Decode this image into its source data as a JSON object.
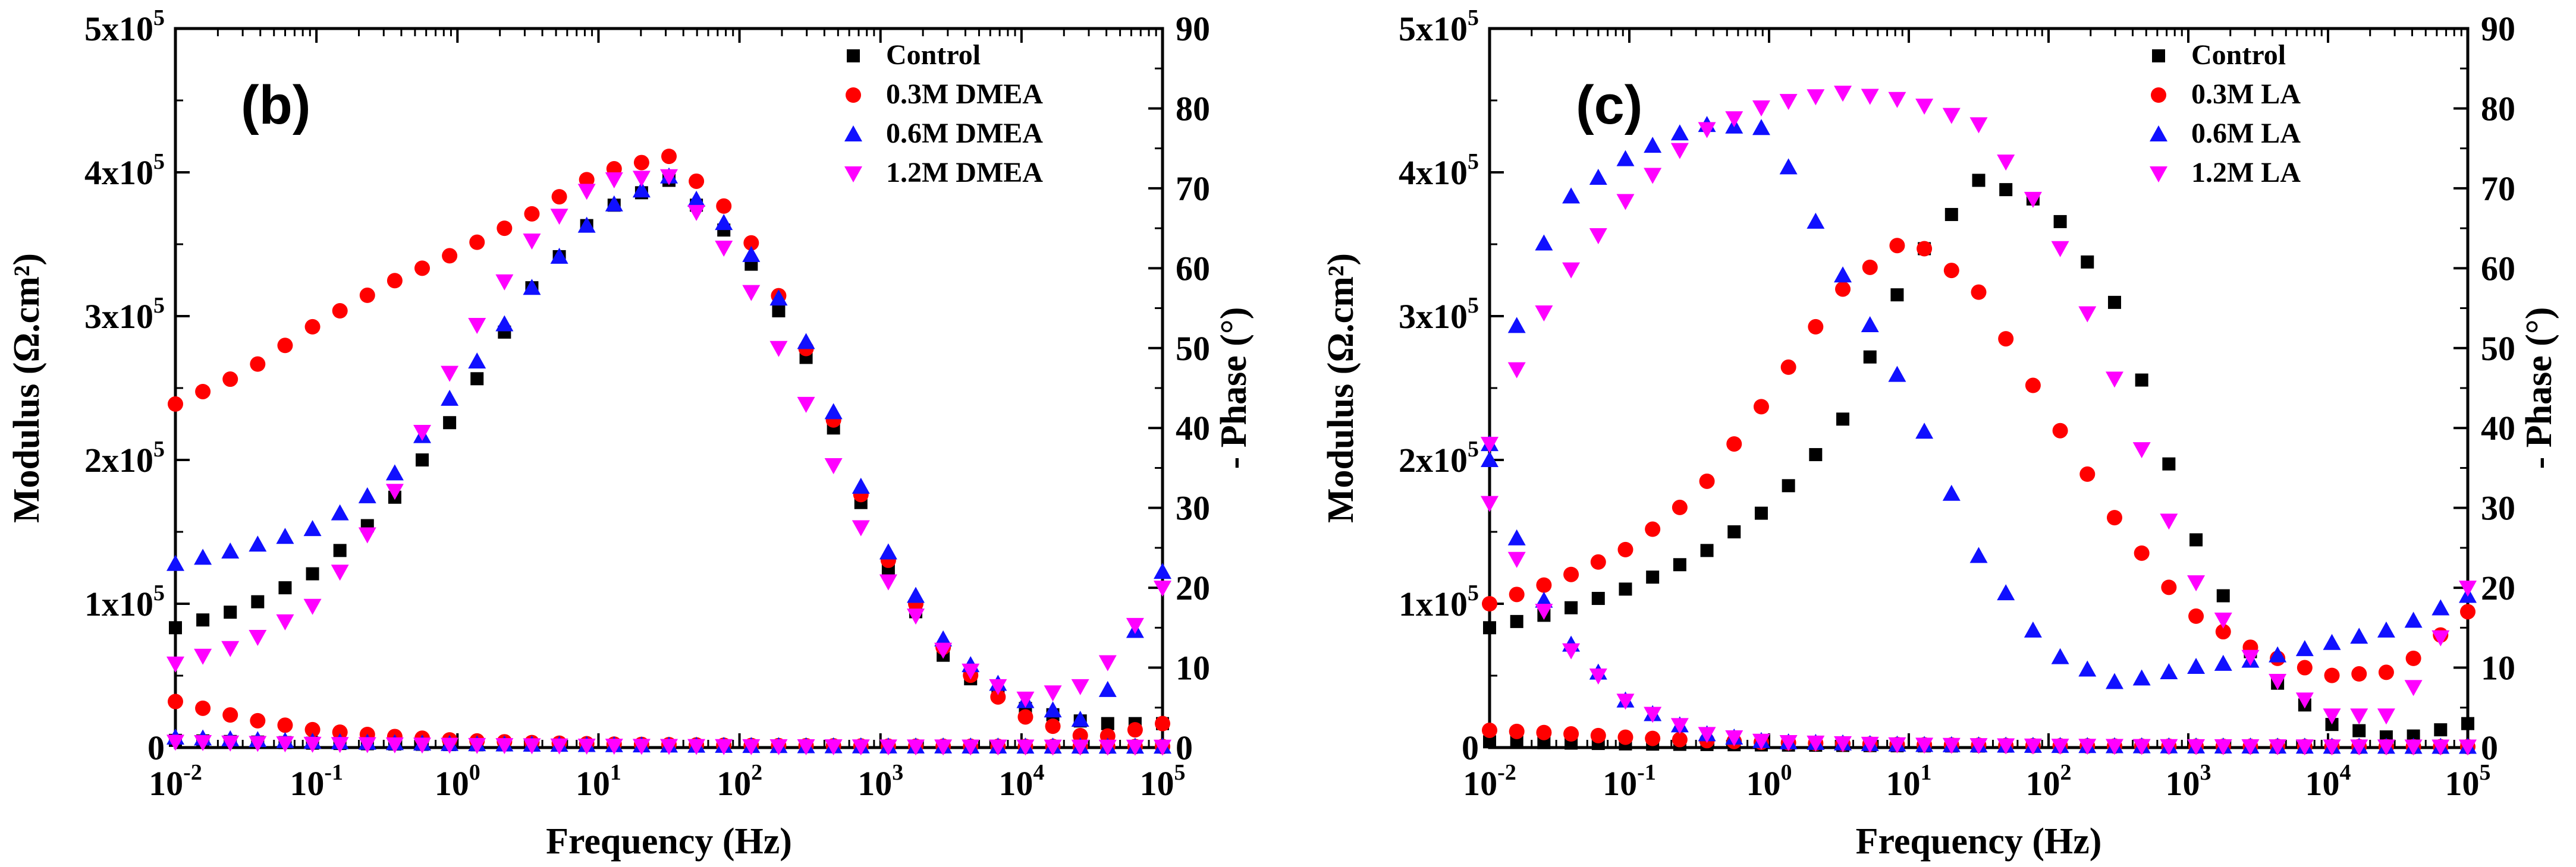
{
  "colors": {
    "Control": "#000000",
    "0.3M": "#ff0000",
    "0.6M": "#1010ff",
    "1.2M": "#ff00ff"
  },
  "chart_data": [
    {
      "type": "scatter",
      "panel_label": "(b)",
      "xlabel": "Frequency (Hz)",
      "ylabel_left": "Modulus (Ω.cm²)",
      "ylabel_right": "- Phase (°)",
      "x_scale": "log",
      "xlim_exp": [
        -2,
        5
      ],
      "x_tick_labels": [
        "10-2",
        "10-1",
        "100",
        "101",
        "102",
        "103",
        "104",
        "105"
      ],
      "ylim_left": [
        0,
        500000
      ],
      "y_left_tick_labels": [
        "0",
        "1x105",
        "2x105",
        "3x105",
        "4x105",
        "5x105"
      ],
      "ylim_right": [
        0,
        90
      ],
      "y_right_tick_labels": [
        "0",
        "10",
        "20",
        "30",
        "40",
        "50",
        "60",
        "70",
        "80",
        "90"
      ],
      "legend": [
        "Control",
        "0.3M DMEA",
        "0.6M DMEA",
        "1.2M DMEA"
      ],
      "legend_position": "top-right",
      "series": [
        {
          "name": "Control",
          "marker": "square",
          "phase_points": [
            [
              -2,
              15
            ],
            [
              -1.5,
              17.5
            ],
            [
              -1,
              22
            ],
            [
              -0.5,
              30
            ],
            [
              0,
              42
            ],
            [
              0.5,
              57
            ],
            [
              1,
              67
            ],
            [
              1.5,
              71
            ],
            [
              2,
              63
            ],
            [
              2.5,
              48
            ],
            [
              3,
              24
            ],
            [
              3.5,
              10
            ],
            [
              4,
              5
            ],
            [
              4.5,
              3
            ],
            [
              5,
              3
            ]
          ],
          "modulus_points": [
            [
              -2,
              5000
            ],
            [
              -1,
              3000
            ],
            [
              0,
              2000
            ],
            [
              1,
              1500
            ],
            [
              2,
              1000
            ],
            [
              3,
              800
            ],
            [
              4,
              700
            ],
            [
              5,
              600
            ]
          ]
        },
        {
          "name": "0.3M DMEA",
          "marker": "circle",
          "phase_points": [
            [
              -2,
              43
            ],
            [
              -1.5,
              47
            ],
            [
              -1,
              53
            ],
            [
              -0.5,
              58
            ],
            [
              0,
              62
            ],
            [
              0.5,
              66.5
            ],
            [
              1,
              72
            ],
            [
              1.5,
              74
            ],
            [
              2,
              66
            ],
            [
              2.5,
              49
            ],
            [
              3,
              25
            ],
            [
              3.5,
              11
            ],
            [
              4,
              4
            ],
            [
              4.5,
              1
            ],
            [
              5,
              3
            ]
          ],
          "modulus_points": [
            [
              -2,
              32000
            ],
            [
              -1.5,
              20000
            ],
            [
              -1,
              12000
            ],
            [
              -0.5,
              8000
            ],
            [
              0,
              5000
            ],
            [
              0.5,
              3500
            ],
            [
              1,
              2500
            ],
            [
              2,
              1500
            ],
            [
              3,
              1000
            ],
            [
              4,
              800
            ],
            [
              5,
              700
            ]
          ]
        },
        {
          "name": "0.6M DMEA",
          "marker": "triangle-up",
          "phase_points": [
            [
              -2,
              23
            ],
            [
              -1.5,
              25
            ],
            [
              -1,
              27.5
            ],
            [
              -0.5,
              33
            ],
            [
              0,
              45
            ],
            [
              0.5,
              57
            ],
            [
              1,
              67
            ],
            [
              1.5,
              71.5
            ],
            [
              2,
              64
            ],
            [
              2.5,
              50
            ],
            [
              3,
              26
            ],
            [
              3.5,
              12
            ],
            [
              4,
              6
            ],
            [
              4.5,
              3
            ],
            [
              5,
              22
            ]
          ],
          "modulus_points": [
            [
              -2,
              7000
            ],
            [
              -1,
              4000
            ],
            [
              0,
              2500
            ],
            [
              1,
              1800
            ],
            [
              2,
              1200
            ],
            [
              3,
              900
            ],
            [
              4,
              800
            ],
            [
              5,
              700
            ]
          ]
        },
        {
          "name": "1.2M DMEA",
          "marker": "triangle-down",
          "phase_points": [
            [
              -2,
              10.5
            ],
            [
              -1.5,
              13
            ],
            [
              -1,
              18
            ],
            [
              -0.5,
              30
            ],
            [
              0,
              49
            ],
            [
              0.5,
              63
            ],
            [
              1,
              71
            ],
            [
              1.5,
              71.5
            ],
            [
              2,
              60
            ],
            [
              2.5,
              42
            ],
            [
              3,
              22
            ],
            [
              3.5,
              11
            ],
            [
              4,
              6
            ],
            [
              4.5,
              8
            ],
            [
              5,
              20
            ]
          ],
          "modulus_points": [
            [
              -2,
              4000
            ],
            [
              -1,
              2500
            ],
            [
              0,
              1800
            ],
            [
              1,
              1200
            ],
            [
              2,
              900
            ],
            [
              3,
              700
            ],
            [
              4,
              600
            ],
            [
              5,
              500
            ]
          ]
        }
      ]
    },
    {
      "type": "scatter",
      "panel_label": "(c)",
      "xlabel": "Frequency (Hz)",
      "ylabel_left": "Modulus (Ω.cm²)",
      "ylabel_right": "- Phase (°)",
      "x_scale": "log",
      "xlim_exp": [
        -2,
        5
      ],
      "x_tick_labels": [
        "10-2",
        "10-1",
        "100",
        "101",
        "102",
        "103",
        "104",
        "105"
      ],
      "ylim_left": [
        0,
        500000
      ],
      "y_left_tick_labels": [
        "0",
        "1x105",
        "2x105",
        "3x105",
        "4x105",
        "5x105"
      ],
      "ylim_right": [
        0,
        90
      ],
      "y_right_tick_labels": [
        "0",
        "10",
        "20",
        "30",
        "40",
        "50",
        "60",
        "70",
        "80",
        "90"
      ],
      "legend": [
        "Control",
        "0.3M LA",
        "0.6M LA",
        "1.2M LA"
      ],
      "legend_position": "top-right",
      "series": [
        {
          "name": "Control",
          "marker": "square",
          "phase_points": [
            [
              -2,
              15
            ],
            [
              -1.5,
              17
            ],
            [
              -1,
              20
            ],
            [
              -0.5,
              24
            ],
            [
              0,
              30
            ],
            [
              0.5,
              40
            ],
            [
              1,
              60
            ],
            [
              1.5,
              71
            ],
            [
              2,
              68
            ],
            [
              2.5,
              55
            ],
            [
              3,
              28
            ],
            [
              3.5,
              10
            ],
            [
              4,
              3
            ],
            [
              4.5,
              1
            ],
            [
              5,
              3
            ]
          ],
          "modulus_points": [
            [
              -2,
              4000
            ],
            [
              -1,
              2500
            ],
            [
              0,
              1800
            ],
            [
              1,
              1200
            ],
            [
              2,
              900
            ],
            [
              3,
              700
            ],
            [
              4,
              600
            ],
            [
              5,
              500
            ]
          ]
        },
        {
          "name": "0.3M LA",
          "marker": "circle",
          "phase_points": [
            [
              -2,
              18
            ],
            [
              -1.5,
              21
            ],
            [
              -1,
              25
            ],
            [
              -0.5,
              32
            ],
            [
              0,
              44
            ],
            [
              0.5,
              57
            ],
            [
              1,
              64
            ],
            [
              1.5,
              57
            ],
            [
              2,
              42
            ],
            [
              2.5,
              28
            ],
            [
              3,
              17
            ],
            [
              3.5,
              12
            ],
            [
              4,
              9
            ],
            [
              4.5,
              9.5
            ],
            [
              5,
              17
            ]
          ],
          "modulus_points": [
            [
              -2,
              12000
            ],
            [
              -1.5,
              10000
            ],
            [
              -1,
              7000
            ],
            [
              -0.5,
              5000
            ],
            [
              0,
              3500
            ],
            [
              1,
              2000
            ],
            [
              2,
              1200
            ],
            [
              3,
              900
            ],
            [
              4,
              700
            ],
            [
              5,
              600
            ]
          ]
        },
        {
          "name": "0.6M LA",
          "marker": "triangle-up",
          "phase_points": [
            [
              -2,
              38
            ],
            [
              -1.75,
              57
            ],
            [
              -1.5,
              68
            ],
            [
              -1,
              74
            ],
            [
              -0.5,
              78
            ],
            [
              0,
              77.5
            ],
            [
              0.5,
              60
            ],
            [
              1,
              44
            ],
            [
              1.5,
              24
            ],
            [
              2,
              12
            ],
            [
              2.5,
              8
            ],
            [
              3,
              10
            ],
            [
              3.5,
              11
            ],
            [
              4,
              13
            ],
            [
              4.5,
              15
            ],
            [
              5,
              19
            ]
          ],
          "modulus_points": [
            [
              -2,
              200000
            ],
            [
              -1.75,
              130000
            ],
            [
              -1.5,
              80000
            ],
            [
              -1,
              30000
            ],
            [
              -0.5,
              10000
            ],
            [
              0,
              4000
            ],
            [
              1,
              2000
            ],
            [
              2,
              1200
            ],
            [
              3,
              900
            ],
            [
              4,
              700
            ],
            [
              5,
              600
            ]
          ]
        },
        {
          "name": "1.2M LA",
          "marker": "triangle-down",
          "phase_points": [
            [
              -2,
              38
            ],
            [
              -1.75,
              50
            ],
            [
              -1.5,
              58
            ],
            [
              -1,
              69
            ],
            [
              -0.5,
              77
            ],
            [
              0,
              80.5
            ],
            [
              0.5,
              82
            ],
            [
              1,
              81
            ],
            [
              1.5,
              78
            ],
            [
              2,
              66
            ],
            [
              2.5,
              45
            ],
            [
              3,
              22
            ],
            [
              3.5,
              10
            ],
            [
              4,
              4
            ],
            [
              4.5,
              4
            ],
            [
              5,
              20
            ]
          ],
          "modulus_points": [
            [
              -2,
              170000
            ],
            [
              -1.75,
              120000
            ],
            [
              -1.5,
              75000
            ],
            [
              -1,
              30000
            ],
            [
              -0.5,
              10000
            ],
            [
              0,
              4000
            ],
            [
              1,
              2000
            ],
            [
              2,
              1200
            ],
            [
              3,
              900
            ],
            [
              4,
              700
            ],
            [
              5,
              600
            ]
          ]
        }
      ]
    }
  ]
}
